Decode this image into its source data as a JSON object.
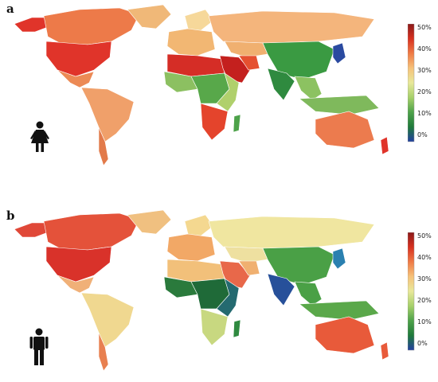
{
  "panels": [
    {
      "letter": "a",
      "icon": "female-icon",
      "legend": {
        "ticks": [
          "50%",
          "40%",
          "30%",
          "20%",
          "10%",
          "0%"
        ]
      },
      "colors": {
        "north_america": "#e0342a",
        "canada": "#ed7a49",
        "alaska": "#e0342a",
        "greenland": "#f0b878",
        "central_america": "#ec8a55",
        "south_america": "#f0a06a",
        "patagonia": "#e27a4a",
        "europe": "#f2b773",
        "russia": "#f4b57c",
        "scandinavia": "#f6d89a",
        "north_africa": "#d52d26",
        "middle_east": "#c4201e",
        "iran": "#e55030",
        "west_africa": "#8cc061",
        "central_africa": "#58a84a",
        "east_africa": "#b0d06c",
        "south_africa": "#e4442c",
        "madagascar": "#4da24a",
        "china": "#3a9a42",
        "india": "#2f8a3f",
        "se_asia": "#8cc261",
        "japan": "#2a4aa0",
        "indonesia": "#7fb95c",
        "australia": "#ec7b4e",
        "new_zealand": "#e0342a",
        "central_asia": "#f0b070"
      }
    },
    {
      "letter": "b",
      "icon": "male-icon",
      "legend": {
        "ticks": [
          "50%",
          "40%",
          "30%",
          "20%",
          "10%",
          "0%"
        ]
      },
      "colors": {
        "north_america": "#d9322a",
        "canada": "#e4523a",
        "alaska": "#e04838",
        "greenland": "#f0c080",
        "central_america": "#f0b078",
        "south_america": "#f0d890",
        "patagonia": "#e88050",
        "europe": "#f2a866",
        "russia": "#f0e6a0",
        "scandinavia": "#f4d890",
        "north_africa": "#f2c07a",
        "middle_east": "#e8684a",
        "iran": "#f0b070",
        "west_africa": "#2a7a3c",
        "central_africa": "#1f6a38",
        "east_africa": "#246a70",
        "south_africa": "#c8d880",
        "madagascar": "#2f8a40",
        "china": "#4aa046",
        "india": "#27509a",
        "se_asia": "#4aa046",
        "japan": "#2a80b0",
        "indonesia": "#5aa84a",
        "australia": "#e85a3a",
        "new_zealand": "#e85a3a",
        "central_asia": "#eee0a0"
      }
    }
  ]
}
